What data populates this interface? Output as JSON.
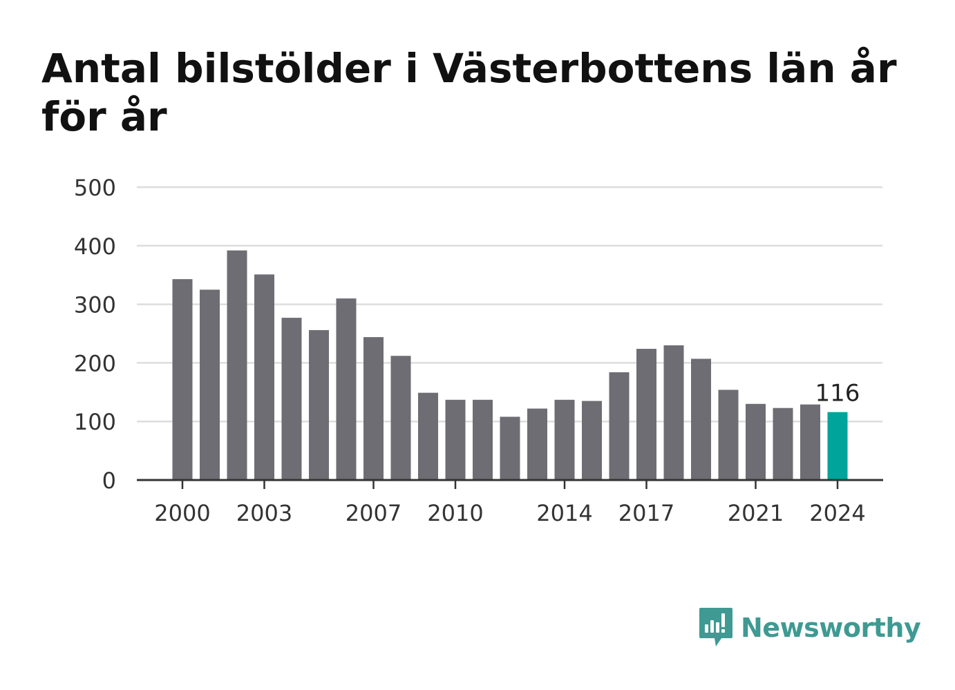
{
  "chart_data": {
    "type": "bar",
    "title": "Antal bilstölder i Västerbottens län år för år",
    "x": [
      2000,
      2001,
      2002,
      2003,
      2004,
      2005,
      2006,
      2007,
      2008,
      2009,
      2010,
      2011,
      2012,
      2013,
      2014,
      2015,
      2016,
      2017,
      2018,
      2019,
      2020,
      2021,
      2022,
      2023,
      2024
    ],
    "values": [
      343,
      325,
      392,
      351,
      277,
      256,
      310,
      244,
      212,
      149,
      137,
      137,
      108,
      122,
      137,
      135,
      184,
      224,
      230,
      207,
      154,
      130,
      123,
      129,
      116
    ],
    "x_tick_labels": [
      "2000",
      "2003",
      "2007",
      "2010",
      "2014",
      "2017",
      "2021",
      "2024"
    ],
    "y_tick_labels": [
      "0",
      "100",
      "200",
      "300",
      "400",
      "500"
    ],
    "ylim": [
      0,
      500
    ],
    "highlight": {
      "x": 2024,
      "label": "116"
    },
    "grid": true,
    "legend": "none",
    "colors": {
      "bar": "#6e6d73",
      "highlight": "#00a49a",
      "grid": "#dddddd",
      "axis": "#333333"
    }
  },
  "brand": {
    "name": "Newsworthy",
    "color": "#3e9a92",
    "icon": "newsworthy-logo-icon"
  }
}
